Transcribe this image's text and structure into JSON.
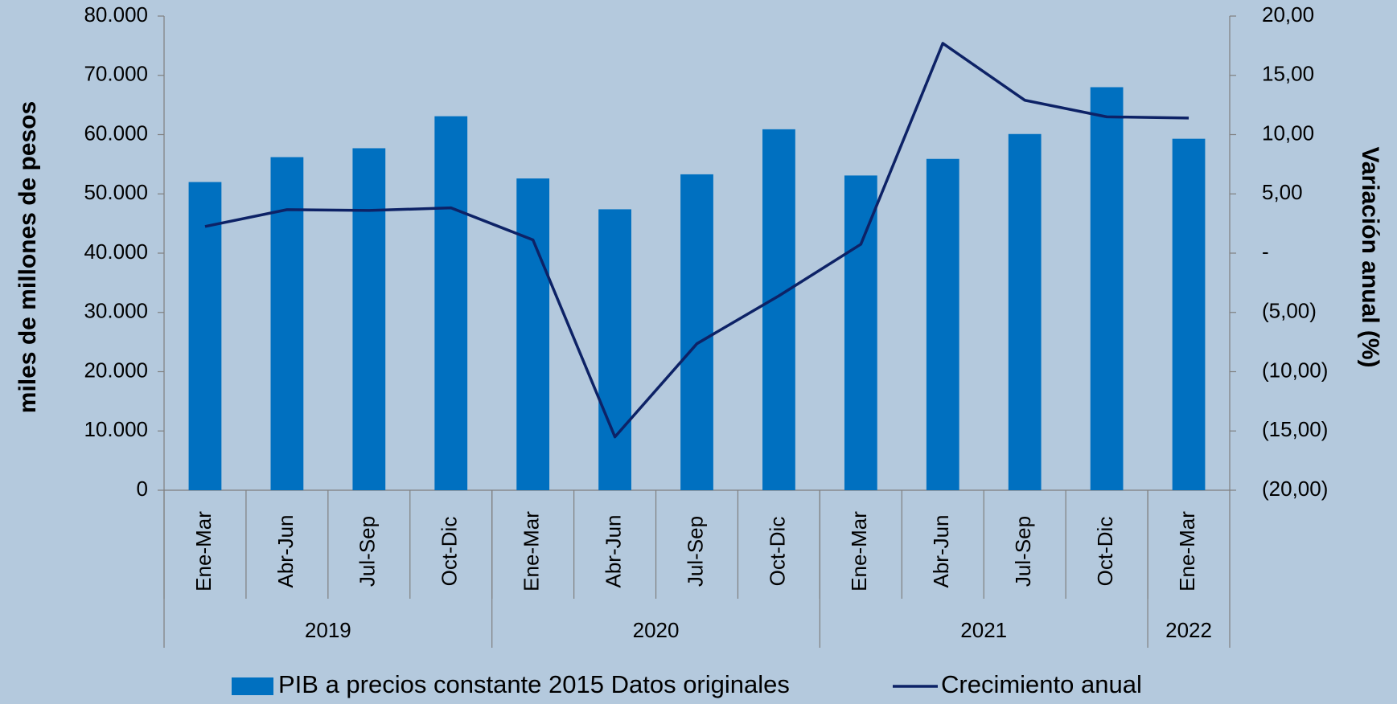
{
  "chart_data": {
    "type": "bar_line",
    "category_groups": [
      {
        "label": "2019",
        "categories": [
          "Ene-Mar",
          "Abr-Jun",
          "Jul-Sep",
          "Oct-Dic"
        ]
      },
      {
        "label": "2020",
        "categories": [
          "Ene-Mar",
          "Abr-Jun",
          "Jul-Sep",
          "Oct-Dic"
        ]
      },
      {
        "label": "2021",
        "categories": [
          "Ene-Mar",
          "Abr-Jun",
          "Jul-Sep",
          "Oct-Dic"
        ]
      },
      {
        "label": "2022",
        "categories": [
          "Ene-Mar"
        ]
      }
    ],
    "series": [
      {
        "name": "PIB a precios constante 2015 Datos originales",
        "type": "bar",
        "color": "#0070c0",
        "values": [
          52000,
          56200,
          57700,
          63100,
          52600,
          47400,
          53300,
          60900,
          53100,
          55900,
          60100,
          68000,
          59300
        ]
      },
      {
        "name": "Crecimiento anual",
        "type": "line",
        "axis": "y2",
        "color": "#0d2266",
        "values": [
          2.25,
          3.67,
          3.6,
          3.82,
          1.12,
          -15.5,
          -7.64,
          -3.6,
          0.75,
          17.7,
          12.9,
          11.5,
          11.4
        ]
      }
    ],
    "y_label": "miles de millones de pesos",
    "y2_label": "Variación anual (%)",
    "ylim": [
      0,
      80000
    ],
    "yticks": [
      0,
      {
        "value": 10000,
        "label": "10.000"
      },
      {
        "value": 20000,
        "label": "20.000"
      },
      {
        "value": 30000,
        "label": "30.000"
      },
      {
        "value": 40000,
        "label": "40.000"
      },
      {
        "value": 50000,
        "label": "50.000"
      },
      {
        "value": 60000,
        "label": "60.000"
      },
      {
        "value": 70000,
        "label": "70.000"
      },
      {
        "value": 80000,
        "label": "80.000"
      }
    ],
    "y2lim": [
      -20,
      20
    ],
    "y2ticks": [
      {
        "value": -20,
        "label": "(20,00)"
      },
      {
        "value": -15,
        "label": "(15,00)"
      },
      {
        "value": -10,
        "label": "(10,00)"
      },
      {
        "value": -5,
        "label": "(5,00)"
      },
      {
        "value": 0,
        "label": "-"
      },
      {
        "value": 5,
        "label": "5,00"
      },
      {
        "value": 10,
        "label": "10,00"
      },
      {
        "value": 15,
        "label": "15,00"
      },
      {
        "value": 20,
        "label": "20,00"
      }
    ],
    "legend": "bottom"
  }
}
